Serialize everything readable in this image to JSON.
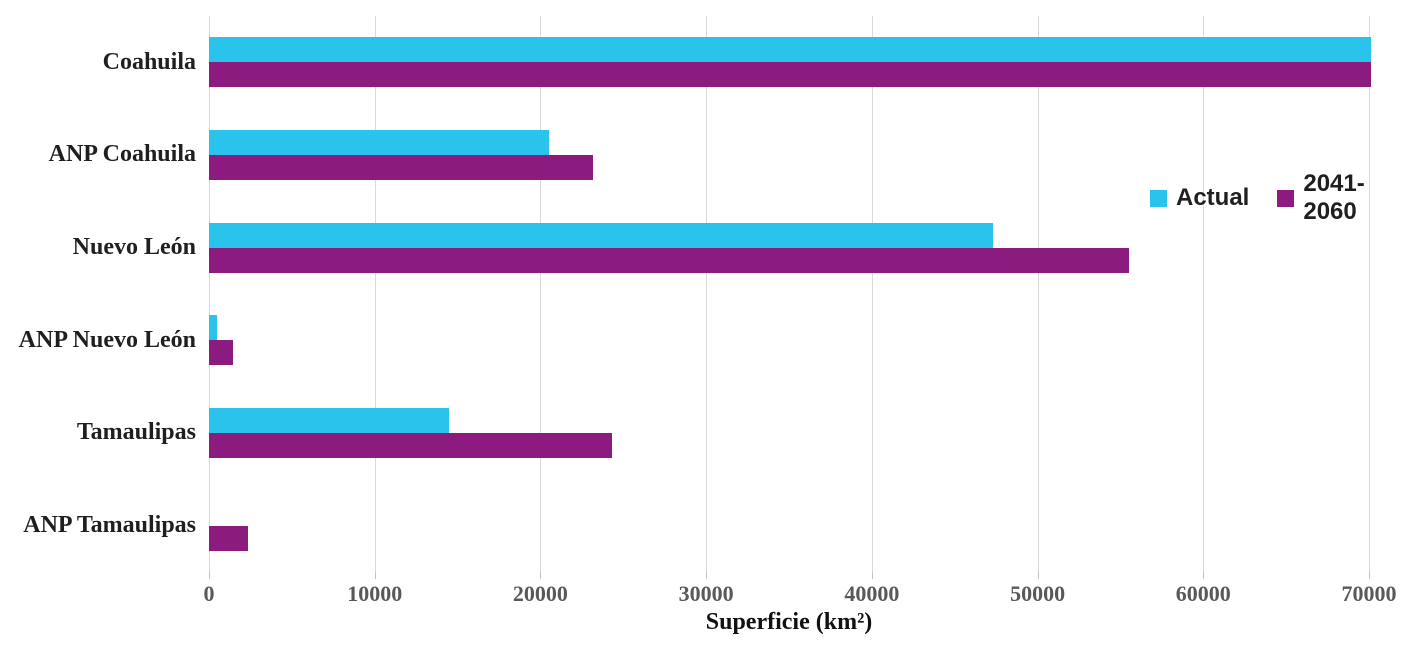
{
  "chart_data": {
    "type": "bar",
    "orientation": "horizontal",
    "title": "",
    "xlabel": "Superficie (km²)",
    "ylabel": "",
    "categories": [
      "Coahuila",
      "ANP Coahuila",
      "Nuevo León",
      "ANP Nuevo León",
      "Tamaulipas",
      "ANP Tamaulipas"
    ],
    "series": [
      {
        "name": "Actual",
        "color": "#29c3ec",
        "values": [
          70100,
          20500,
          47300,
          500,
          14500,
          0
        ]
      },
      {
        "name": "2041-2060",
        "color": "#8c1b7f",
        "values": [
          70100,
          23200,
          55500,
          1450,
          24300,
          2350
        ]
      }
    ],
    "xlim": [
      0,
      70000
    ],
    "xticks": [
      0,
      10000,
      20000,
      30000,
      40000,
      50000,
      60000,
      70000
    ],
    "xtick_labels": [
      "0",
      "10000",
      "20000",
      "30000",
      "40000",
      "50000",
      "60000",
      "70000"
    ],
    "grid": true,
    "gridline_color": "#d9d9d9",
    "tick_label_color": "#595959",
    "category_label_color": "#1f1f1f",
    "background_color": "#ffffff",
    "legend_position": "right-upper"
  }
}
